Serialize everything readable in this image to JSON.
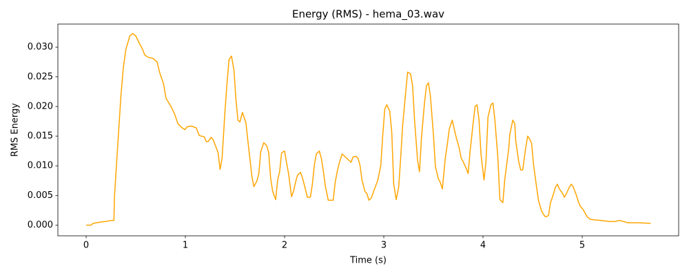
{
  "chart_data": {
    "type": "line",
    "title": "Energy (RMS) - hema_03.wav",
    "x_label": "Time (s)",
    "y_label": "RMS Energy",
    "color": "#ffa500",
    "x": [
      0,
      0.05,
      0.07,
      0.14,
      0.19,
      0.26,
      0.28,
      0.285,
      0.31,
      0.35,
      0.375,
      0.4,
      0.44,
      0.47,
      0.5,
      0.535,
      0.57,
      0.59,
      0.625,
      0.675,
      0.715,
      0.74,
      0.78,
      0.805,
      0.855,
      0.89,
      0.925,
      0.96,
      0.995,
      1.02,
      1.06,
      1.11,
      1.14,
      1.19,
      1.21,
      1.23,
      1.26,
      1.28,
      1.31,
      1.33,
      1.35,
      1.37,
      1.4,
      1.42,
      1.44,
      1.465,
      1.49,
      1.51,
      1.53,
      1.55,
      1.575,
      1.61,
      1.63,
      1.65,
      1.67,
      1.69,
      1.72,
      1.74,
      1.76,
      1.79,
      1.82,
      1.84,
      1.86,
      1.88,
      1.91,
      1.93,
      1.95,
      1.97,
      2.0,
      2.02,
      2.04,
      2.07,
      2.09,
      2.11,
      2.13,
      2.16,
      2.18,
      2.2,
      2.23,
      2.26,
      2.28,
      2.3,
      2.32,
      2.35,
      2.37,
      2.39,
      2.41,
      2.44,
      2.49,
      2.51,
      2.53,
      2.55,
      2.58,
      2.6,
      2.625,
      2.65,
      2.67,
      2.69,
      2.72,
      2.74,
      2.76,
      2.78,
      2.81,
      2.83,
      2.85,
      2.875,
      2.9,
      2.92,
      2.94,
      2.97,
      2.99,
      3.01,
      3.03,
      3.06,
      3.08,
      3.1,
      3.125,
      3.15,
      3.17,
      3.19,
      3.22,
      3.24,
      3.27,
      3.29,
      3.31,
      3.34,
      3.36,
      3.38,
      3.41,
      3.43,
      3.45,
      3.47,
      3.5,
      3.52,
      3.55,
      3.57,
      3.59,
      3.62,
      3.64,
      3.66,
      3.69,
      3.71,
      3.73,
      3.76,
      3.78,
      3.8,
      3.83,
      3.85,
      3.87,
      3.9,
      3.92,
      3.94,
      3.96,
      3.98,
      4.01,
      4.03,
      4.05,
      4.08,
      4.1,
      4.12,
      4.15,
      4.17,
      4.2,
      4.22,
      4.26,
      4.27,
      4.3,
      4.32,
      4.33,
      4.36,
      4.38,
      4.4,
      4.43,
      4.45,
      4.47,
      4.49,
      4.51,
      4.54,
      4.56,
      4.59,
      4.61,
      4.63,
      4.66,
      4.68,
      4.7,
      4.73,
      4.75,
      4.77,
      4.8,
      4.82,
      4.84,
      4.87,
      4.89,
      4.91,
      4.94,
      4.96,
      4.98,
      5.01,
      5.03,
      5.05,
      5.08,
      5.12,
      5.19,
      5.28,
      5.33,
      5.37,
      5.42,
      5.46,
      5.56,
      5.69
    ],
    "values": [
      0,
      0,
      0.0003,
      0.0005,
      0.0006,
      0.0008,
      0.0008,
      0.0047,
      0.0113,
      0.0217,
      0.0266,
      0.0296,
      0.0319,
      0.0323,
      0.0319,
      0.0307,
      0.0296,
      0.0287,
      0.0283,
      0.0281,
      0.0275,
      0.0258,
      0.0238,
      0.0214,
      0.02,
      0.0188,
      0.0171,
      0.0165,
      0.0161,
      0.0166,
      0.0167,
      0.0164,
      0.0151,
      0.0149,
      0.0141,
      0.0141,
      0.0148,
      0.0144,
      0.0131,
      0.0122,
      0.0094,
      0.0113,
      0.0194,
      0.024,
      0.0279,
      0.0285,
      0.0261,
      0.0211,
      0.0177,
      0.0174,
      0.019,
      0.0173,
      0.0142,
      0.0113,
      0.0083,
      0.0065,
      0.0074,
      0.0087,
      0.0124,
      0.0139,
      0.0134,
      0.0122,
      0.0078,
      0.0057,
      0.0043,
      0.0076,
      0.009,
      0.0122,
      0.0125,
      0.0105,
      0.0087,
      0.0048,
      0.0057,
      0.0072,
      0.0084,
      0.0089,
      0.008,
      0.0067,
      0.0047,
      0.0047,
      0.0069,
      0.0101,
      0.012,
      0.0125,
      0.0113,
      0.0092,
      0.0067,
      0.0042,
      0.0042,
      0.0072,
      0.009,
      0.0104,
      0.012,
      0.0117,
      0.0113,
      0.0109,
      0.0106,
      0.0115,
      0.0116,
      0.0113,
      0.0101,
      0.0076,
      0.0057,
      0.0053,
      0.0042,
      0.0046,
      0.0058,
      0.0067,
      0.0076,
      0.0101,
      0.0153,
      0.0196,
      0.0203,
      0.0192,
      0.0157,
      0.0069,
      0.0043,
      0.0064,
      0.0113,
      0.0168,
      0.0223,
      0.0258,
      0.0255,
      0.0235,
      0.0177,
      0.011,
      0.009,
      0.0148,
      0.0206,
      0.0235,
      0.024,
      0.0217,
      0.0153,
      0.0099,
      0.0078,
      0.0072,
      0.0061,
      0.0113,
      0.0136,
      0.0162,
      0.0177,
      0.0162,
      0.0148,
      0.013,
      0.0113,
      0.0107,
      0.0096,
      0.0087,
      0.0125,
      0.0171,
      0.02,
      0.0203,
      0.0177,
      0.0119,
      0.0076,
      0.0107,
      0.0182,
      0.0203,
      0.0206,
      0.0177,
      0.0113,
      0.0043,
      0.0038,
      0.0078,
      0.013,
      0.0153,
      0.0177,
      0.0171,
      0.0142,
      0.0107,
      0.0093,
      0.0093,
      0.013,
      0.015,
      0.0145,
      0.0138,
      0.0101,
      0.0064,
      0.0041,
      0.0024,
      0.0018,
      0.0014,
      0.0016,
      0.0038,
      0.0047,
      0.0064,
      0.0069,
      0.0061,
      0.0054,
      0.0047,
      0.0053,
      0.0064,
      0.0069,
      0.0064,
      0.0051,
      0.004,
      0.0032,
      0.0026,
      0.002,
      0.0014,
      0.001,
      0.0009,
      0.0008,
      0.0006,
      0.0006,
      0.0008,
      0.0006,
      0.0004,
      0.0004,
      0.0003
    ],
    "xlim": [
      -0.285,
      5.972
    ],
    "ylim": [
      -0.0018,
      0.0339
    ],
    "xticks": [
      0,
      1,
      2,
      3,
      4,
      5
    ],
    "yticks": [
      {
        "value": 0,
        "label": "0.000"
      },
      {
        "value": 0.005,
        "label": "0.005"
      },
      {
        "value": 0.01,
        "label": "0.010"
      },
      {
        "value": 0.015,
        "label": "0.015"
      },
      {
        "value": 0.02,
        "label": "0.020"
      },
      {
        "value": 0.025,
        "label": "0.025"
      },
      {
        "value": 0.03,
        "label": "0.030"
      }
    ],
    "grid": false
  }
}
